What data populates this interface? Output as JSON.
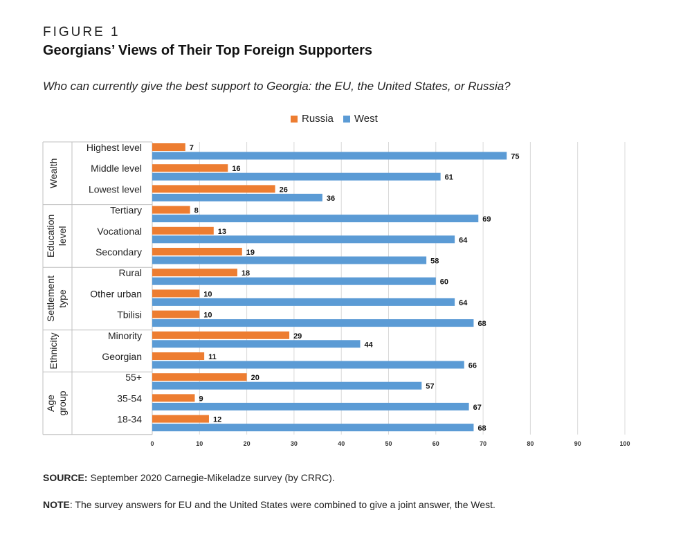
{
  "figure_label": "FIGURE 1",
  "title": "Georgians’ Views of Their Top Foreign Supporters",
  "subtitle": "Who can currently give the best support to Georgia: the EU, the United States, or Russia?",
  "source_label": "SOURCE:",
  "source_text": " September 2020 Carnegie-Mikeladze survey (by CRRC).",
  "note_label": "NOTE",
  "note_text": ": The survey answers for EU and the United States were combined to give a joint answer, the West.",
  "colors": {
    "russia": "#ED7D31",
    "west": "#5B9BD5",
    "grid": "#d9d9d9"
  },
  "chart_data": {
    "type": "bar",
    "orientation": "horizontal",
    "xlim": [
      0,
      100
    ],
    "xticks": [
      0,
      10,
      20,
      30,
      40,
      50,
      60,
      70,
      80,
      90,
      100
    ],
    "grid": true,
    "legend_position": "top-center",
    "groups": [
      {
        "name": "Wealth",
        "categories": [
          "Highest level",
          "Middle level",
          "Lowest level"
        ]
      },
      {
        "name": "Education level",
        "categories": [
          "Tertiary",
          "Vocational",
          "Secondary"
        ]
      },
      {
        "name": "Settlement type",
        "categories": [
          "Rural",
          "Other urban",
          "Tbilisi"
        ]
      },
      {
        "name": "Ethnicity",
        "categories": [
          "Minority",
          "Georgian"
        ]
      },
      {
        "name": "Age group",
        "categories": [
          "55+",
          "35-54",
          "18-34"
        ]
      }
    ],
    "categories": [
      "Highest level",
      "Middle level",
      "Lowest level",
      "Tertiary",
      "Vocational",
      "Secondary",
      "Rural",
      "Other urban",
      "Tbilisi",
      "Minority",
      "Georgian",
      "55+",
      "35-54",
      "18-34"
    ],
    "series": [
      {
        "name": "Russia",
        "values": [
          7,
          16,
          26,
          8,
          13,
          19,
          18,
          10,
          10,
          29,
          11,
          20,
          9,
          12
        ]
      },
      {
        "name": "West",
        "values": [
          75,
          61,
          36,
          69,
          64,
          58,
          60,
          64,
          68,
          44,
          66,
          57,
          67,
          68
        ]
      }
    ]
  }
}
